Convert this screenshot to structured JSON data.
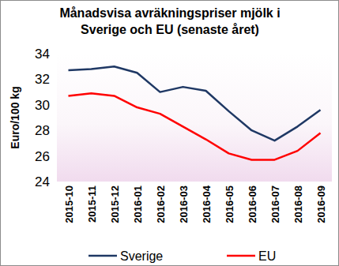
{
  "chart_data": {
    "type": "line",
    "title": "Månadsvisa avräkningspriser mjölk i\nSverige och EU (senaste året)",
    "y_label": "Euro/100 kg",
    "categories": [
      "2015-10",
      "2015-11",
      "2015-12",
      "2016-01",
      "2016-02",
      "2016-03",
      "2016-04",
      "2016-05",
      "2016-06",
      "2016-07",
      "2016-08",
      "2016-09"
    ],
    "series": [
      {
        "name": "Sverige",
        "color": "#1f3864",
        "values": [
          32.7,
          32.8,
          33.0,
          32.5,
          31.0,
          31.4,
          31.1,
          29.5,
          28.0,
          27.2,
          28.3,
          29.6
        ]
      },
      {
        "name": "EU",
        "color": "#ff0000",
        "values": [
          30.7,
          30.9,
          30.7,
          29.8,
          29.3,
          28.3,
          27.3,
          26.2,
          25.7,
          25.7,
          26.4,
          27.8
        ]
      }
    ],
    "ylim": [
      24,
      34
    ],
    "yticks": [
      24,
      26,
      28,
      30,
      32,
      34
    ],
    "grid": false,
    "legend": "bottom"
  }
}
